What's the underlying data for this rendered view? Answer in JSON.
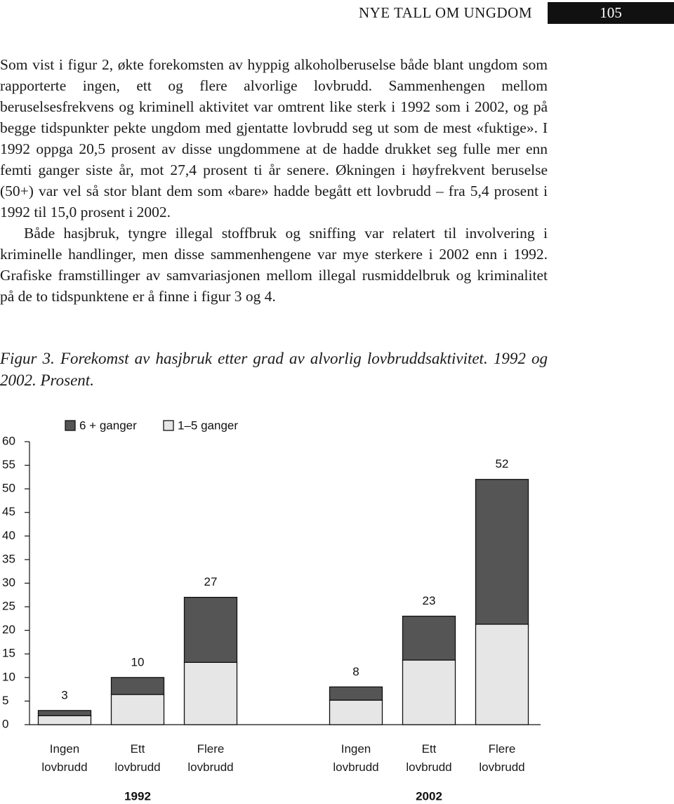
{
  "header": {
    "title": "NYE TALL OM UNGDOM",
    "page": "105"
  },
  "paragraphs": [
    "Som vist i figur 2, økte forekomsten av hyppig alkoholberuselse både blant ungdom som rapporterte ingen, ett og flere alvorlige lovbrudd. Sammenhengen mellom beruselsesfrekvens og kriminell aktivitet var omtrent like sterk i 1992 som i 2002, og på begge tidspunkter pekte ungdom med gjentatte lovbrudd seg ut som de mest «fuktige». I 1992 oppga 20,5 prosent av disse ungdommene at de hadde drukket seg fulle mer enn femti ganger siste år, mot 27,4 prosent ti år senere. Økningen i høyfrekvent beruselse (50+) var vel så stor blant dem som «bare» hadde begått ett lovbrudd – fra 5,4 prosent i 1992 til 15,0 prosent i 2002.",
    "Både hasjbruk, tyngre illegal stoffbruk og sniffing var relatert til involvering i kriminelle handlinger, men disse sammenhengene var mye sterkere i 2002 enn i 1992. Grafiske framstillinger av samvariasjonen mellom illegal rusmiddelbruk og kriminalitet på de to tidspunktene er å finne i figur 3 og 4."
  ],
  "caption": "Figur 3. Forekomst av hasjbruk etter grad av alvorlig lovbruddsaktivitet. 1992 og 2002. Prosent.",
  "chart_data": {
    "type": "stacked-bar",
    "categories": [
      "Ingen lovbrudd",
      "Ett lovbrudd",
      "Flere lovbrudd",
      "Ingen lovbrudd",
      "Ett lovbrudd",
      "Flere lovbrudd"
    ],
    "groups": [
      "1992",
      "2002"
    ],
    "series": [
      {
        "name": "1–5 ganger",
        "color": "#e6e6e6",
        "values": [
          1.9,
          6.4,
          13.2,
          5.2,
          13.7,
          21.3
        ]
      },
      {
        "name": "6 + ganger",
        "color": "#555555",
        "values": [
          1.1,
          3.6,
          13.8,
          2.8,
          9.3,
          30.7
        ]
      }
    ],
    "totals": [
      3,
      10,
      27,
      8,
      23,
      52
    ],
    "ylim": [
      0,
      60
    ],
    "yticks": [
      0,
      5,
      10,
      15,
      20,
      25,
      30,
      35,
      40,
      45,
      50,
      55,
      60
    ],
    "grid": false
  }
}
